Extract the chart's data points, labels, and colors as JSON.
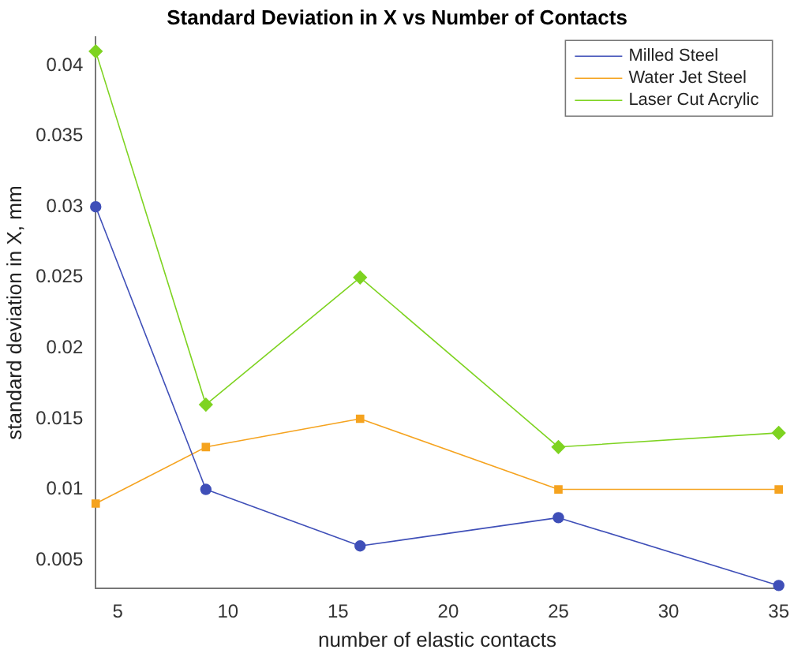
{
  "chart_data": {
    "type": "line",
    "title": "Standard Deviation in X vs Number of Contacts",
    "xlabel": "number of elastic contacts",
    "ylabel": "standard deviation in X, mm",
    "x": [
      4,
      9,
      16,
      25,
      35
    ],
    "series": [
      {
        "name": "Milled Steel",
        "color": "#3f4fb8",
        "marker": "circle",
        "values": [
          0.03,
          0.01,
          0.006,
          0.008,
          0.0032
        ]
      },
      {
        "name": "Water Jet Steel",
        "color": "#f5a31f",
        "marker": "square",
        "values": [
          0.009,
          0.013,
          0.015,
          0.01,
          0.01
        ]
      },
      {
        "name": "Laser Cut Acrylic",
        "color": "#7ed321",
        "marker": "diamond",
        "values": [
          0.041,
          0.016,
          0.025,
          0.013,
          0.014
        ]
      }
    ],
    "xlim": [
      4,
      35
    ],
    "xticks": [
      5,
      10,
      15,
      20,
      25,
      30,
      35
    ],
    "ylim": [
      0.003,
      0.042
    ],
    "yticks": [
      0.005,
      0.01,
      0.015,
      0.02,
      0.025,
      0.03,
      0.035,
      0.04
    ],
    "grid": false,
    "legend": "top right",
    "line_style": "solid"
  }
}
